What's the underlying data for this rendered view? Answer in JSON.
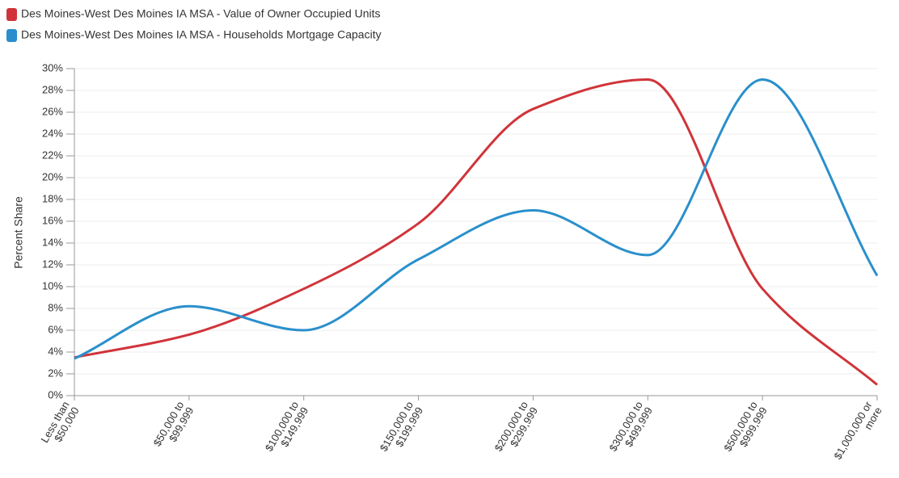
{
  "chart_data": {
    "type": "line",
    "categories": [
      "Less than\n$50,000",
      "$50,000 to\n$99,999",
      "$100,000 to\n$149,999",
      "$150,000 to\n$199,999",
      "$200,000 to\n$299,999",
      "$300,000 to\n$499,999",
      "$500,000 to\n$999,999",
      "$1,000,000 or\nmore"
    ],
    "series": [
      {
        "name": "Des Moines-West Des Moines IA MSA - Value of Owner Occupied Units",
        "color": "#d0343a",
        "values": [
          3.5,
          5.6,
          9.8,
          15.8,
          26.3,
          29.0,
          9.8,
          1.0
        ]
      },
      {
        "name": "Des Moines-West Des Moines IA MSA - Households Mortgage Capacity",
        "color": "#2a8fcc",
        "values": [
          3.4,
          8.2,
          6.0,
          12.5,
          17.0,
          12.9,
          29.0,
          11.0
        ]
      }
    ],
    "ylabel": "Percent Share",
    "ylim": [
      0,
      30
    ],
    "yticks": [
      {
        "value": 0,
        "label": "0%"
      },
      {
        "value": 2,
        "label": "2%"
      },
      {
        "value": 4,
        "label": "4%"
      },
      {
        "value": 6,
        "label": "6%"
      },
      {
        "value": 8,
        "label": "8%"
      },
      {
        "value": 10,
        "label": "10%"
      },
      {
        "value": 12,
        "label": "12%"
      },
      {
        "value": 14,
        "label": "14%"
      },
      {
        "value": 16,
        "label": "16%"
      },
      {
        "value": 18,
        "label": "18%"
      },
      {
        "value": 20,
        "label": "20%"
      },
      {
        "value": 22,
        "label": "22%"
      },
      {
        "value": 24,
        "label": "24%"
      },
      {
        "value": 26,
        "label": "26%"
      },
      {
        "value": 28,
        "label": "28%"
      },
      {
        "value": 30,
        "label": "30%"
      }
    ],
    "grid": true,
    "legend": "top-left"
  }
}
